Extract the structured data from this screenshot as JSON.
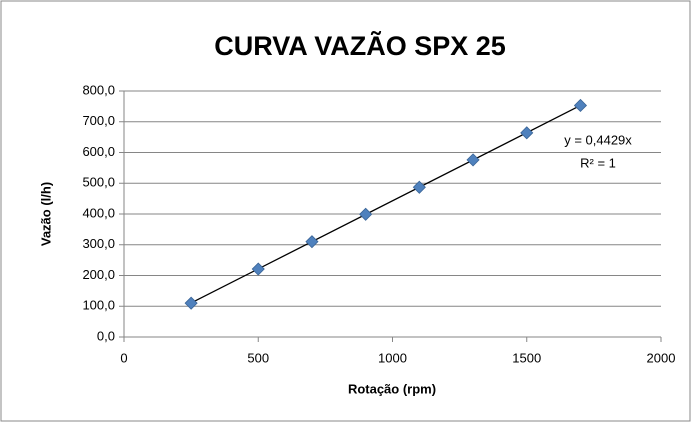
{
  "chart_data": {
    "type": "scatter",
    "title": "CURVA VAZÃO SPX 25",
    "x_label": "Rotação (rpm)",
    "y_label": "Vazão (l/h)",
    "series": [
      {
        "name": "Vazão",
        "color": "#4f81bd",
        "x": [
          250,
          500,
          700,
          900,
          1100,
          1300,
          1500,
          1700
        ],
        "values": [
          110,
          221,
          310,
          399,
          487,
          576,
          664,
          753
        ]
      }
    ],
    "trendline": {
      "slope": 0.4429,
      "color": "#000000",
      "equation": "y = 0,4429x",
      "r2": "R² = 1"
    },
    "xlim": [
      0,
      2000
    ],
    "xticks": [
      0,
      500,
      1000,
      1500,
      2000
    ],
    "ylim": [
      0,
      800
    ],
    "yticks": [
      {
        "value": 0,
        "label": "0,0"
      },
      {
        "value": 100,
        "label": "100,0"
      },
      {
        "value": 200,
        "label": "200,0"
      },
      {
        "value": 300,
        "label": "300,0"
      },
      {
        "value": 400,
        "label": "400,0"
      },
      {
        "value": 500,
        "label": "500,0"
      },
      {
        "value": 600,
        "label": "600,0"
      },
      {
        "value": 700,
        "label": "700,0"
      },
      {
        "value": 800,
        "label": "800,0"
      }
    ],
    "grid": true
  }
}
